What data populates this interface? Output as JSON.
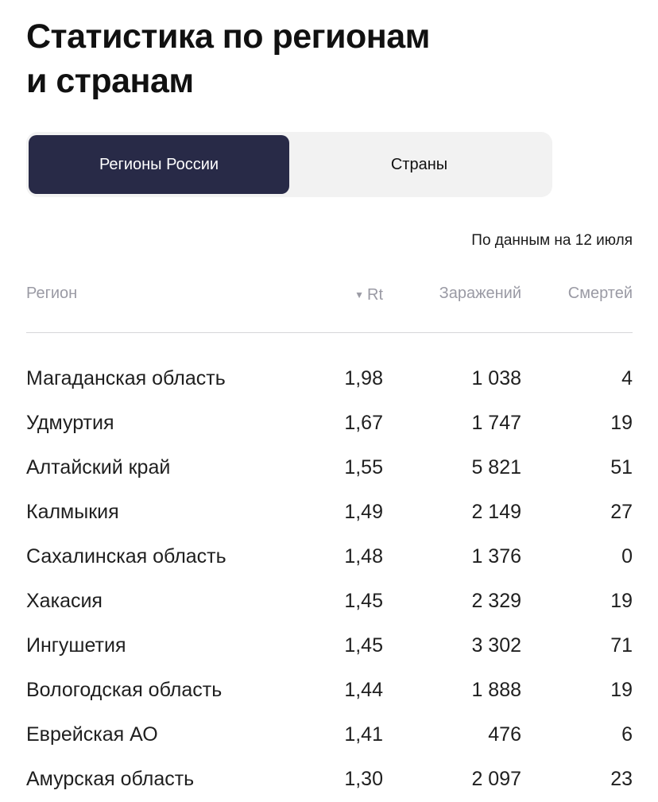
{
  "header": {
    "title_line1": "Статистика по регионам",
    "title_line2": "и странам"
  },
  "tabs": [
    {
      "label": "Регионы России",
      "active": true
    },
    {
      "label": "Страны",
      "active": false
    }
  ],
  "as_of": "По данным на 12 июля",
  "table": {
    "columns": {
      "region": "Регион",
      "rt": "Rt",
      "infections": "Заражений",
      "deaths": "Смертей"
    },
    "sort_indicator": "▼",
    "rows": [
      {
        "region": "Магаданская область",
        "rt": "1,98",
        "infections": "1 038",
        "deaths": "4"
      },
      {
        "region": "Удмуртия",
        "rt": "1,67",
        "infections": "1 747",
        "deaths": "19"
      },
      {
        "region": "Алтайский край",
        "rt": "1,55",
        "infections": "5 821",
        "deaths": "51"
      },
      {
        "region": "Калмыкия",
        "rt": "1,49",
        "infections": "2 149",
        "deaths": "27"
      },
      {
        "region": "Сахалинская область",
        "rt": "1,48",
        "infections": "1 376",
        "deaths": "0"
      },
      {
        "region": "Хакасия",
        "rt": "1,45",
        "infections": "2 329",
        "deaths": "19"
      },
      {
        "region": "Ингушетия",
        "rt": "1,45",
        "infections": "3 302",
        "deaths": "71"
      },
      {
        "region": "Вологодская область",
        "rt": "1,44",
        "infections": "1 888",
        "deaths": "19"
      },
      {
        "region": "Еврейская АО",
        "rt": "1,41",
        "infections": "476",
        "deaths": "6"
      },
      {
        "region": "Амурская область",
        "rt": "1,30",
        "infections": "2 097",
        "deaths": "23"
      }
    ]
  },
  "colors": {
    "active_tab_bg": "#282a47",
    "tabs_bg": "#f2f2f2",
    "header_text": "#9a9aa4"
  }
}
